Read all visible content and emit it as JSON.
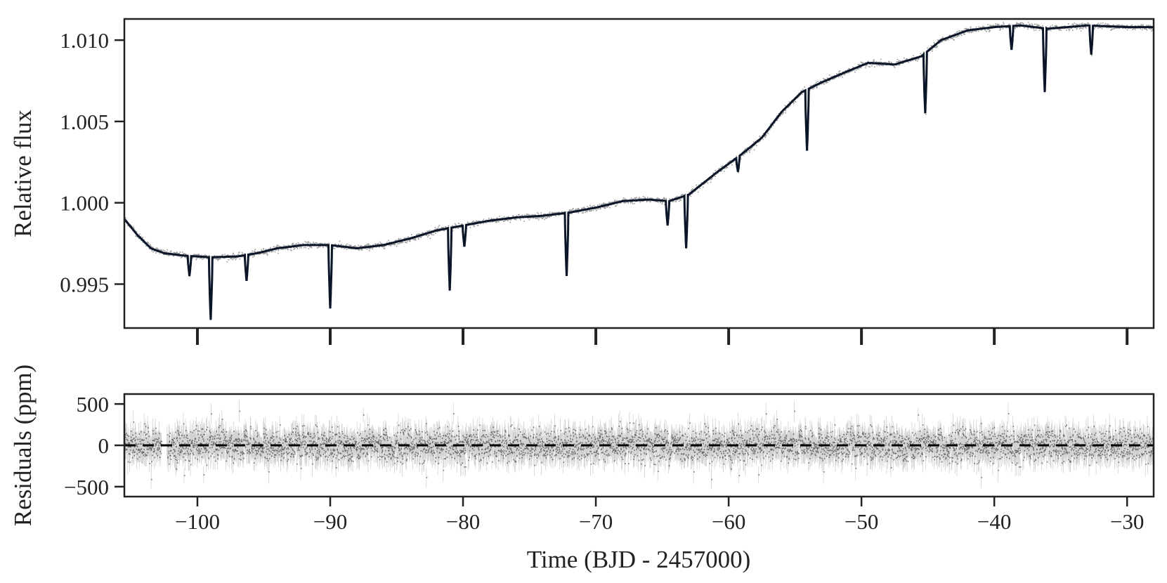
{
  "chart_data": [
    {
      "type": "line",
      "panel": "flux",
      "ylabel": "Relative flux",
      "xlim": [
        -105.5,
        -28
      ],
      "ylim": [
        0.9923,
        1.0113
      ],
      "xticks": [
        -100,
        -90,
        -80,
        -70,
        -60,
        -50,
        -40,
        -30
      ],
      "yticks": [
        0.995,
        1.0,
        1.005,
        1.01
      ],
      "ytick_labels": [
        "0.995",
        "1.000",
        "1.005",
        "1.010"
      ],
      "xtick_labels_visible": false,
      "baseline": [
        [
          -105.5,
          0.999
        ],
        [
          -104.5,
          0.998
        ],
        [
          -103.5,
          0.9972
        ],
        [
          -102.5,
          0.9969
        ],
        [
          -101,
          0.99675
        ],
        [
          -99,
          0.99665
        ],
        [
          -97,
          0.9967
        ],
        [
          -95.5,
          0.9969
        ],
        [
          -94,
          0.9972
        ],
        [
          -92,
          0.9974
        ],
        [
          -90,
          0.9974
        ],
        [
          -88,
          0.9972
        ],
        [
          -86,
          0.9974
        ],
        [
          -84,
          0.9978
        ],
        [
          -82,
          0.9983
        ],
        [
          -80,
          0.9986
        ],
        [
          -78,
          0.9989
        ],
        [
          -76,
          0.9991
        ],
        [
          -74,
          0.9992
        ],
        [
          -72,
          0.9994
        ],
        [
          -70,
          0.9997
        ],
        [
          -68,
          1.0001
        ],
        [
          -66,
          1.0002
        ],
        [
          -64.5,
          1.0001
        ],
        [
          -63,
          1.0005
        ],
        [
          -61,
          1.0018
        ],
        [
          -59,
          1.003
        ],
        [
          -57.5,
          1.004
        ],
        [
          -56,
          1.0056
        ],
        [
          -54.5,
          1.0068
        ],
        [
          -53,
          1.0074
        ],
        [
          -51,
          1.0081
        ],
        [
          -49.5,
          1.0086
        ],
        [
          -47.5,
          1.0085
        ],
        [
          -45.5,
          1.009
        ],
        [
          -44,
          1.01
        ],
        [
          -42,
          1.0106
        ],
        [
          -40,
          1.0108
        ],
        [
          -38,
          1.0109
        ],
        [
          -36,
          1.0107
        ],
        [
          -33,
          1.0109
        ],
        [
          -30,
          1.0108
        ],
        [
          -28,
          1.0108
        ]
      ],
      "transits": [
        {
          "t": -100.6,
          "min": 0.9955
        },
        {
          "t": -99.0,
          "min": 0.9928
        },
        {
          "t": -96.3,
          "min": 0.9952
        },
        {
          "t": -90.0,
          "min": 0.9935
        },
        {
          "t": -81.0,
          "min": 0.9946
        },
        {
          "t": -79.9,
          "min": 0.9973
        },
        {
          "t": -72.2,
          "min": 0.9955
        },
        {
          "t": -64.6,
          "min": 0.9986
        },
        {
          "t": -63.2,
          "min": 0.9972
        },
        {
          "t": -59.3,
          "min": 1.0019
        },
        {
          "t": -54.1,
          "min": 1.0032
        },
        {
          "t": -45.2,
          "min": 1.0055
        },
        {
          "t": -38.7,
          "min": 1.0094
        },
        {
          "t": -36.2,
          "min": 1.0068
        },
        {
          "t": -32.7,
          "min": 1.0091
        }
      ],
      "colors": {
        "data": "#444444",
        "model": "#0b1528",
        "axes": "#222222"
      }
    },
    {
      "type": "scatter",
      "panel": "residuals",
      "xlabel": "Time (BJD - 2457000)",
      "ylabel": "Residuals (ppm)",
      "xlim": [
        -105.5,
        -28
      ],
      "ylim": [
        -620,
        620
      ],
      "xticks": [
        -100,
        -90,
        -80,
        -70,
        -60,
        -50,
        -40,
        -30
      ],
      "xtick_labels": [
        "−100",
        "−90",
        "−80",
        "−70",
        "−60",
        "−50",
        "−40",
        "−30"
      ],
      "yticks": [
        500,
        0,
        -500
      ],
      "ytick_labels": [
        "500",
        "0",
        "−500"
      ],
      "scatter_sigma_ppm": 95,
      "data_gap": [
        -102.7,
        -102.3
      ],
      "reference_line": {
        "y": 0,
        "style": "dashed"
      },
      "colors": {
        "points": "#000000",
        "axes": "#222222"
      }
    }
  ]
}
